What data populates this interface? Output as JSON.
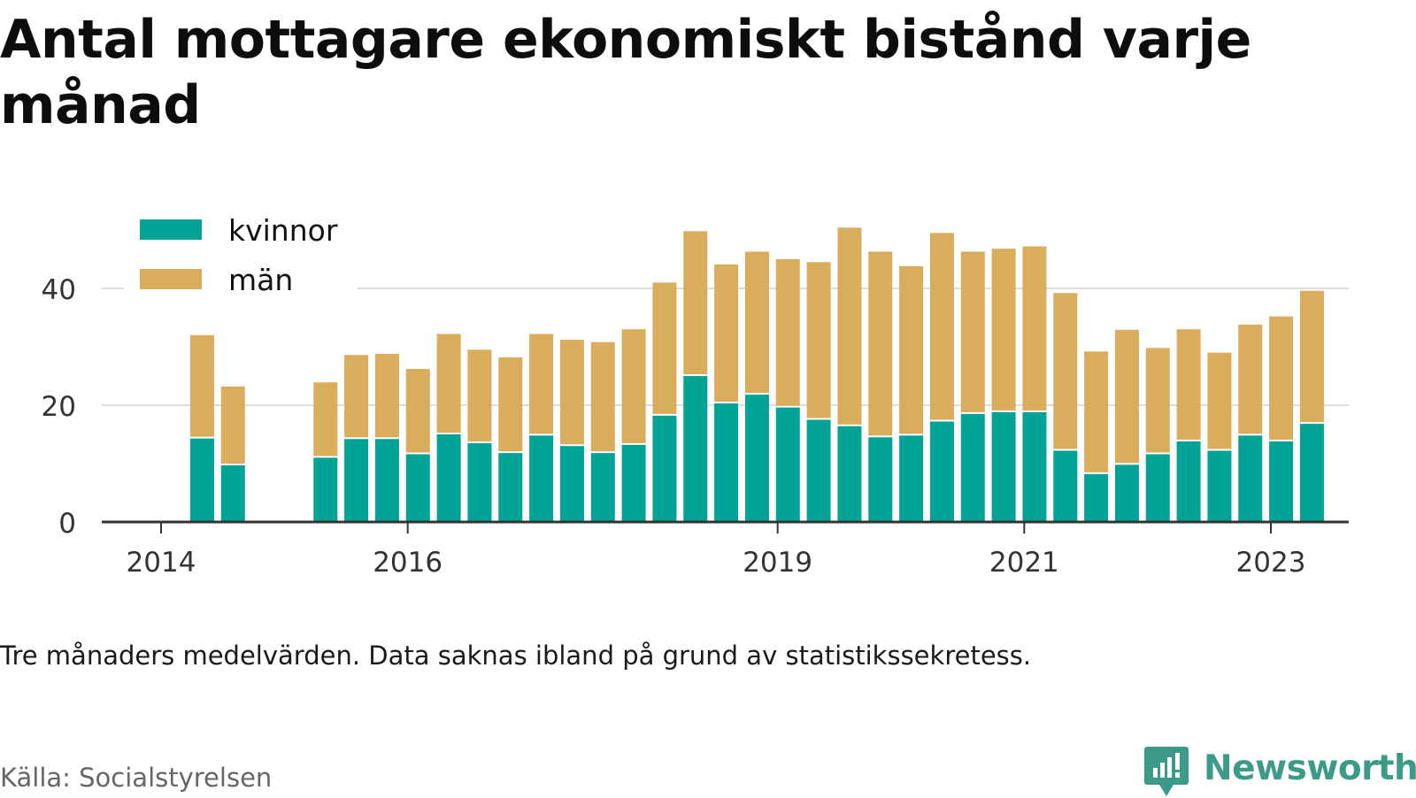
{
  "title": "Antal mottagare ekonomiskt bistånd varje månad",
  "note": "Tre månaders medelvärden. Data saknas ibland på grund av statistikssekretess.",
  "source": "Källa: Socialstyrelsen",
  "brand": {
    "name": "Newsworthy",
    "icon": "newsworthy-bar-chart-icon"
  },
  "colors": {
    "kvinnor": "#00a395",
    "man": "#d9ad5b",
    "grid": "#dddddd",
    "axis": "#333333"
  },
  "chart_data": {
    "type": "bar",
    "stacked": true,
    "x_type": "date",
    "legend": {
      "position": "top-left",
      "entries": [
        "kvinnor",
        "män"
      ]
    },
    "x_ticks": [
      "2014",
      "2016",
      "2019",
      "2021",
      "2023"
    ],
    "y_ticks": [
      0,
      20,
      40
    ],
    "ylim": [
      0,
      52
    ],
    "grid": true,
    "xlabel": "",
    "ylabel": "",
    "dates": [
      "2014-05",
      "2014-08",
      "2015-05",
      "2015-08",
      "2015-11",
      "2016-02",
      "2016-05",
      "2016-08",
      "2016-11",
      "2017-02",
      "2017-05",
      "2017-08",
      "2017-11",
      "2018-02",
      "2018-05",
      "2018-08",
      "2018-11",
      "2019-02",
      "2019-05",
      "2019-08",
      "2019-11",
      "2020-02",
      "2020-05",
      "2020-08",
      "2020-11",
      "2021-02",
      "2021-05",
      "2021-08",
      "2021-11",
      "2022-02",
      "2022-05",
      "2022-08",
      "2022-11",
      "2023-02",
      "2023-05"
    ],
    "series": [
      {
        "name": "kvinnor",
        "values": [
          14.3,
          9.7,
          11.0,
          14.2,
          14.2,
          11.6,
          15.0,
          13.5,
          11.8,
          14.8,
          13.0,
          11.8,
          13.2,
          18.2,
          25.0,
          20.3,
          21.8,
          19.6,
          17.5,
          16.4,
          14.5,
          14.8,
          17.2,
          18.5,
          18.8,
          18.8,
          12.2,
          8.2,
          9.8,
          11.6,
          13.8,
          12.2,
          14.8,
          13.8,
          16.8
        ]
      },
      {
        "name": "män",
        "values": [
          17.7,
          13.5,
          12.9,
          14.4,
          14.6,
          14.6,
          17.2,
          16.0,
          16.4,
          17.4,
          18.2,
          19.0,
          19.8,
          22.8,
          24.8,
          23.8,
          24.5,
          25.4,
          27.0,
          34.0,
          31.8,
          29.0,
          32.3,
          27.8,
          28.0,
          28.4,
          27.0,
          21.0,
          23.1,
          18.2,
          19.2,
          16.8,
          19.0,
          21.4,
          22.8
        ]
      }
    ]
  }
}
